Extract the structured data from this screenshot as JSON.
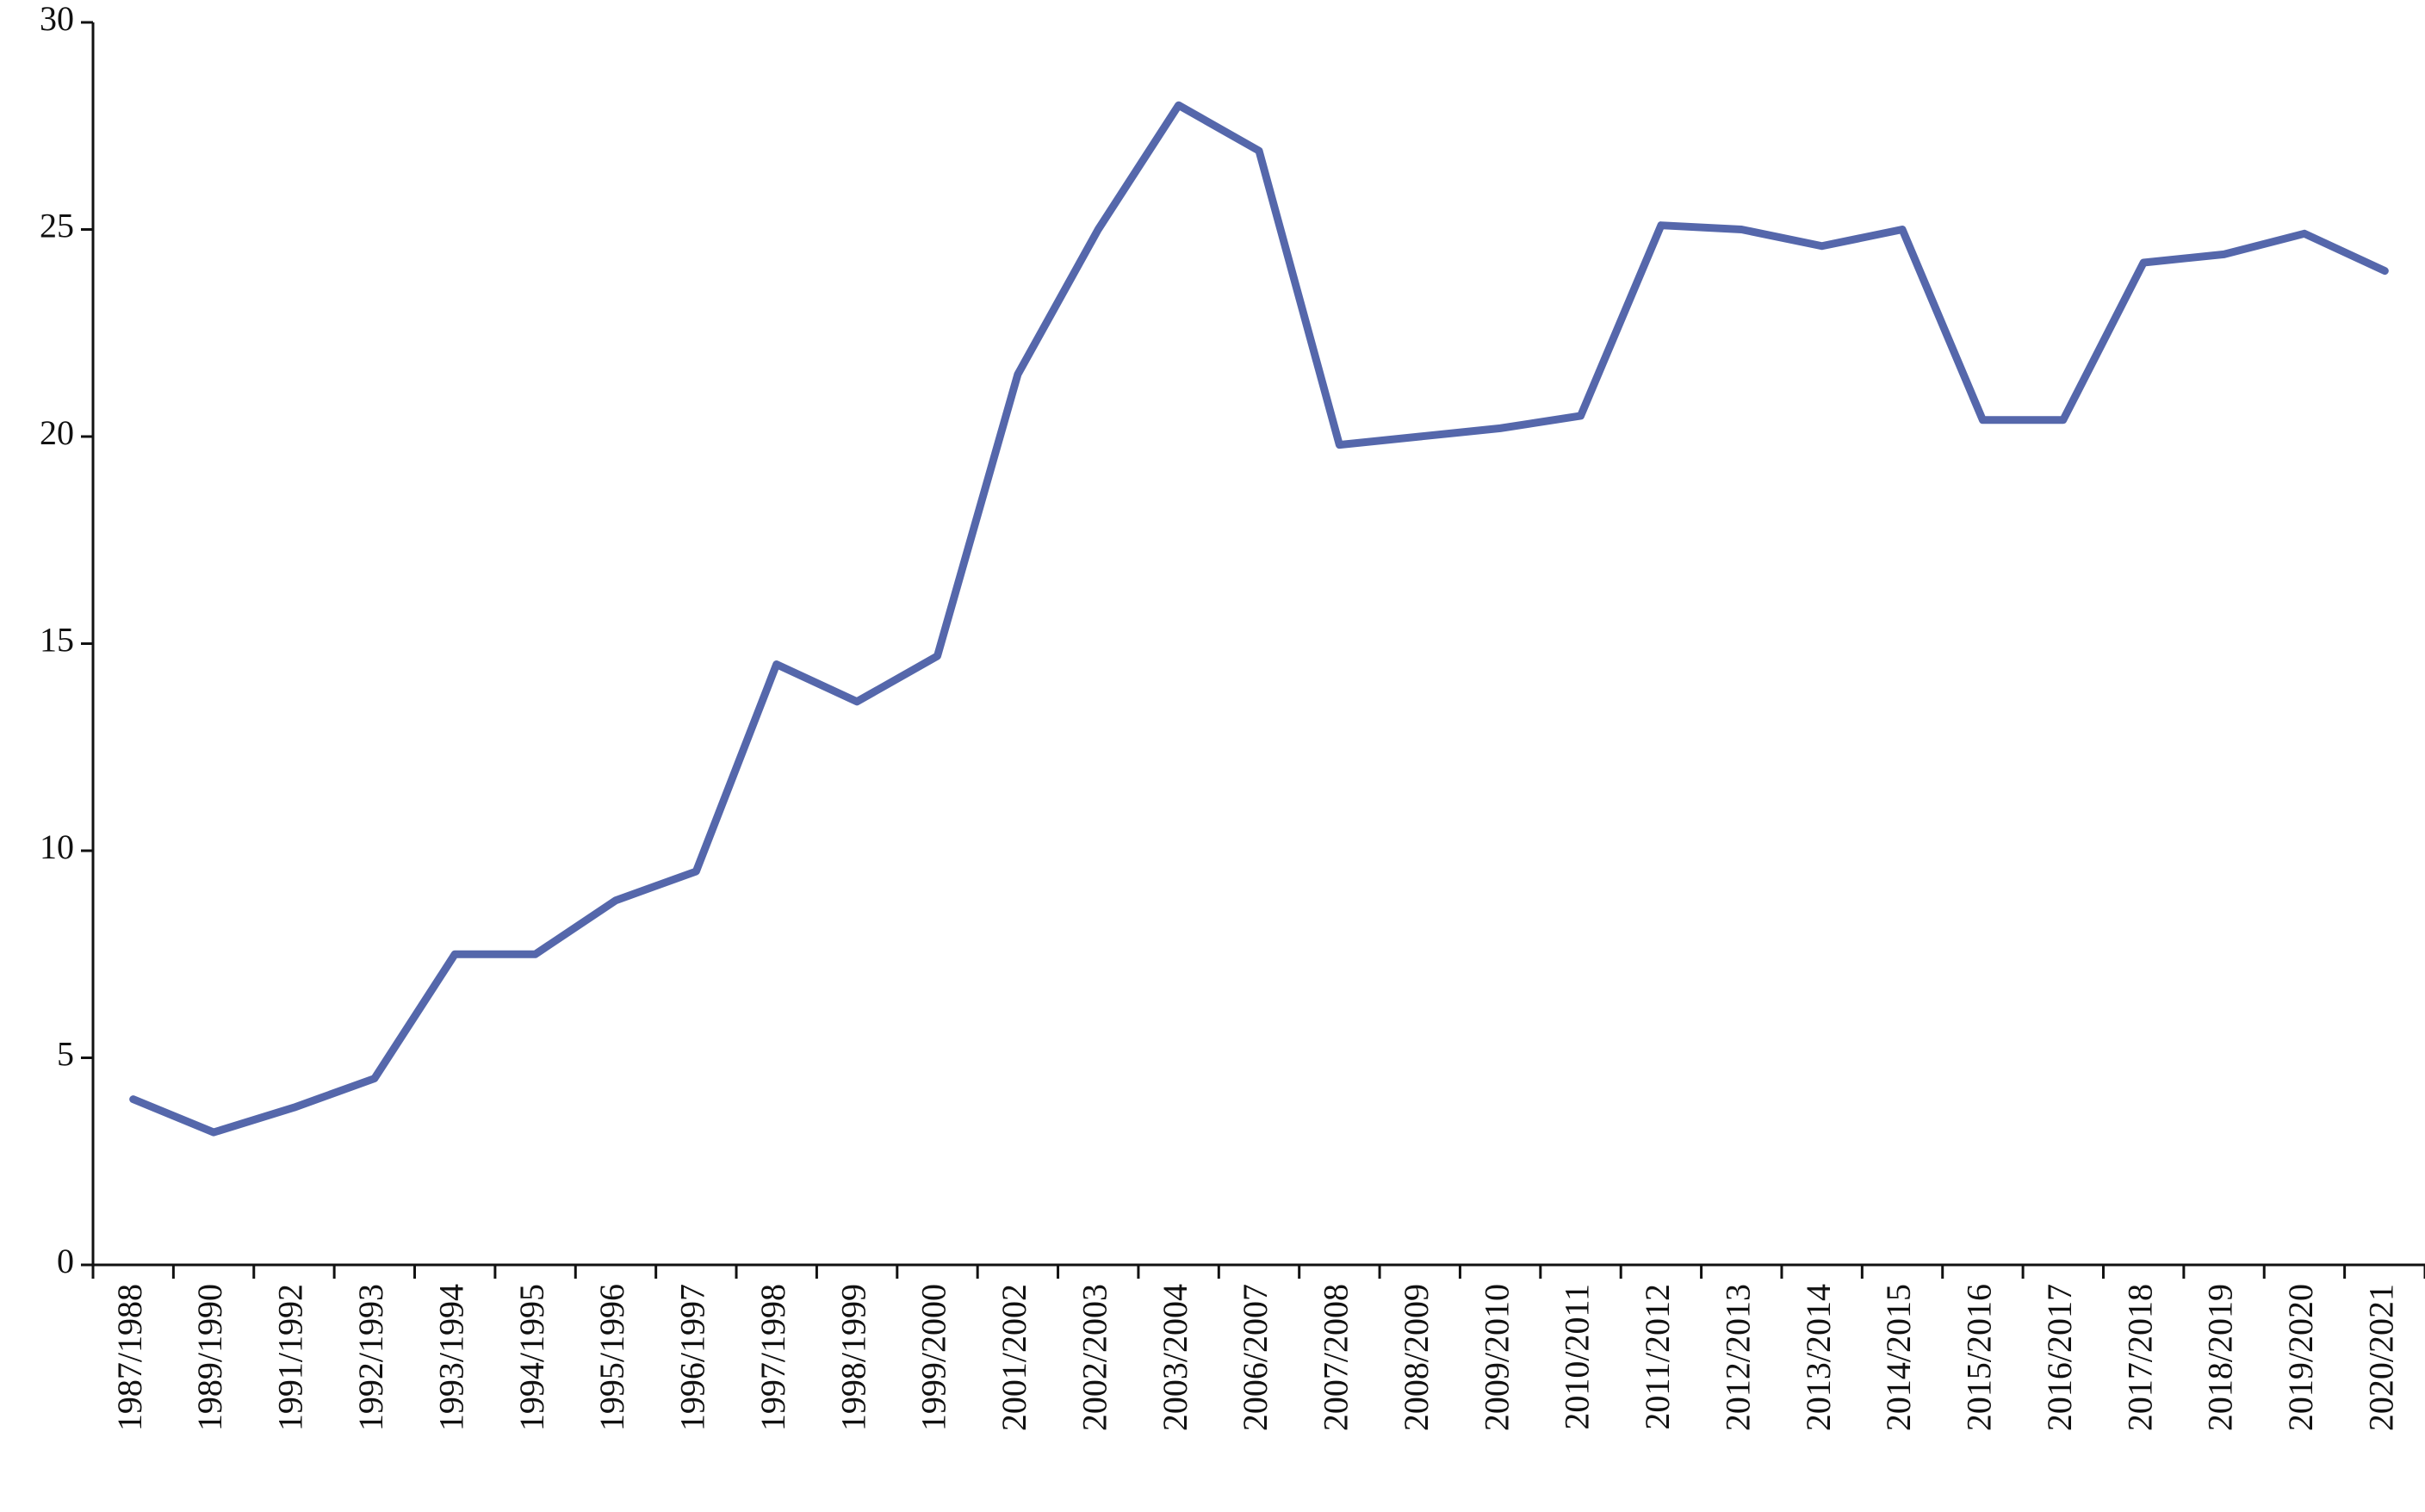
{
  "chart_data": {
    "type": "line",
    "categories": [
      "1987/1988",
      "1989/1990",
      "1991/1992",
      "1992/1993",
      "1993/1994",
      "1994/1995",
      "1995/1996",
      "1996/1997",
      "1997/1998",
      "1998/1999",
      "1999/2000",
      "2001/2002",
      "2002/2003",
      "2003/2004",
      "2006/2007",
      "2007/2008",
      "2008/2009",
      "2009/2010",
      "2010/2011",
      "2011/2012",
      "2012/2013",
      "2013/2014",
      "2014/2015",
      "2015/2016",
      "2016/2017",
      "2017/2018",
      "2018/2019",
      "2019/2020",
      "2020/2021"
    ],
    "values": [
      4.0,
      3.2,
      3.8,
      4.5,
      7.5,
      7.5,
      8.8,
      9.5,
      14.5,
      13.6,
      14.7,
      21.5,
      25.0,
      28.0,
      26.9,
      19.8,
      20.0,
      20.2,
      20.5,
      25.1,
      25.0,
      24.6,
      25.0,
      20.4,
      20.4,
      24.2,
      24.4,
      24.9,
      24.0
    ],
    "color": "#5567ab",
    "ylim": [
      0,
      30
    ],
    "yticks": [
      0,
      5,
      10,
      15,
      20,
      25,
      30
    ]
  }
}
